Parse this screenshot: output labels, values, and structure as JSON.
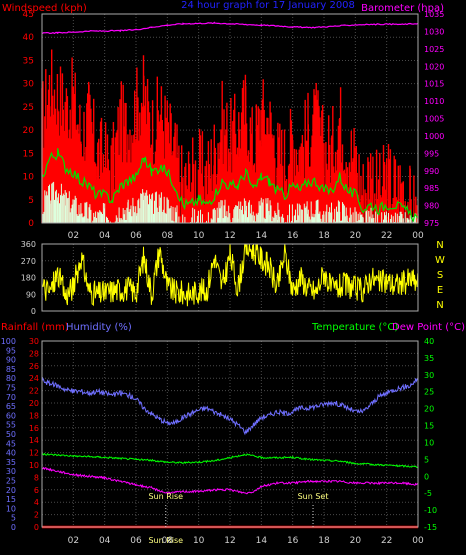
{
  "colors": {
    "background": "#000000",
    "grid": "#4a4a4a",
    "tick_text": "#cfcfcf",
    "wind_gust": "#ff0000",
    "wind_avg": "#00e000",
    "wind_min": "#ddffdd",
    "barometer": "#ff00ff",
    "wind_dir": "#ffff00",
    "rainfall": "#ff0000",
    "humidity": "#6f6fff",
    "temperature": "#00ff00",
    "dew_point": "#ff00ff",
    "frame": "#aaaaaa",
    "sun_text": "#ffff80",
    "title": "#2222ff"
  },
  "chart_data": [
    {
      "type": "line",
      "title": "24 hour graph for 17 January 2008",
      "ylabel": "Windspeed (kph)",
      "y2label": "Barometer (hpa)",
      "x_ticks": [
        "02",
        "04",
        "06",
        "08",
        "10",
        "12",
        "14",
        "16",
        "18",
        "20",
        "22",
        "00"
      ],
      "ylim": [
        0,
        45
      ],
      "yticks": [
        0,
        5,
        10,
        15,
        20,
        25,
        30,
        35,
        40,
        45
      ],
      "y2lim": [
        975,
        1035
      ],
      "y2ticks": [
        975,
        980,
        985,
        990,
        995,
        1000,
        1005,
        1010,
        1015,
        1020,
        1025,
        1030,
        1035
      ],
      "grid": true,
      "series": [
        {
          "role": "gust",
          "axis": "left",
          "x": [
            0,
            0.5,
            1,
            1.5,
            2,
            2.5,
            3,
            3.5,
            4,
            4.5,
            5,
            5.5,
            6,
            6.5,
            7,
            7.5,
            8,
            8.5,
            9,
            9.5,
            10,
            10.5,
            11,
            11.5,
            12,
            12.5,
            13,
            13.5,
            14,
            14.5,
            15,
            15.5,
            16,
            16.5,
            17,
            17.5,
            18,
            18.5,
            19,
            19.5,
            20,
            20.5,
            21,
            21.5,
            22,
            22.5,
            23,
            23.5,
            24
          ],
          "values": [
            22,
            30,
            28,
            25,
            27,
            19,
            23,
            15,
            14,
            12,
            22,
            20,
            25,
            28,
            20,
            24,
            20,
            15,
            8,
            10,
            12,
            10,
            15,
            22,
            18,
            20,
            25,
            16,
            24,
            22,
            15,
            14,
            18,
            16,
            20,
            22,
            16,
            16,
            23,
            16,
            14,
            7,
            12,
            6,
            10,
            8,
            8,
            4,
            2
          ]
        },
        {
          "role": "average",
          "axis": "left",
          "x": [
            0,
            0.5,
            1,
            1.5,
            2,
            2.5,
            3,
            3.5,
            4,
            4.5,
            5,
            5.5,
            6,
            6.5,
            7,
            7.5,
            8,
            8.5,
            9,
            9.5,
            10,
            10.5,
            11,
            11.5,
            12,
            12.5,
            13,
            13.5,
            14,
            14.5,
            15,
            15.5,
            16,
            16.5,
            17,
            17.5,
            18,
            18.5,
            19,
            19.5,
            20,
            20.5,
            21,
            21.5,
            22,
            22.5,
            23,
            23.5,
            24
          ],
          "values": [
            10,
            14,
            15,
            12,
            11,
            9,
            8,
            6,
            6,
            5,
            8,
            9,
            10,
            14,
            11,
            12,
            11,
            8,
            4,
            4,
            5,
            4,
            6,
            9,
            8,
            8,
            11,
            7,
            10,
            9,
            7,
            6,
            8,
            7,
            9,
            9,
            7,
            7,
            10,
            7,
            6,
            3,
            4,
            3,
            4,
            4,
            3,
            2,
            1
          ]
        },
        {
          "role": "minimum",
          "axis": "left",
          "x": [
            0,
            0.5,
            1,
            1.5,
            2,
            2.5,
            3,
            3.5,
            4,
            4.5,
            5,
            5.5,
            6,
            6.5,
            7,
            7.5,
            8,
            8.5,
            9,
            9.5,
            10,
            10.5,
            11,
            11.5,
            12,
            12.5,
            13,
            13.5,
            14,
            14.5,
            15,
            15.5,
            16,
            16.5,
            17,
            17.5,
            18,
            18.5,
            19,
            19.5,
            20,
            20.5,
            21,
            21.5,
            22,
            22.5,
            23,
            23.5,
            24
          ],
          "values": [
            4,
            6,
            7,
            5,
            4,
            3,
            2,
            1,
            2,
            1,
            3,
            3,
            4,
            6,
            4,
            5,
            4,
            2,
            0,
            1,
            1,
            0,
            2,
            3,
            2,
            3,
            4,
            2,
            3,
            3,
            2,
            1,
            2,
            2,
            3,
            3,
            2,
            2,
            3,
            2,
            1,
            0,
            1,
            0,
            0,
            0,
            0,
            0,
            0
          ]
        },
        {
          "role": "barometer",
          "axis": "right",
          "x": [
            0,
            1,
            2,
            3,
            4,
            5,
            6,
            7,
            8,
            9,
            10,
            11,
            12,
            13,
            14,
            15,
            16,
            17,
            18,
            19,
            20,
            21,
            22,
            23,
            24
          ],
          "values": [
            1029.5,
            1029.6,
            1029.8,
            1030.1,
            1030.1,
            1030.2,
            1030.5,
            1031.2,
            1031.8,
            1032.2,
            1032.3,
            1032.4,
            1032.2,
            1032.0,
            1031.8,
            1031.6,
            1031.3,
            1031.1,
            1031.3,
            1031.6,
            1031.9,
            1032.0,
            1032.1,
            1032.0,
            1032.3
          ]
        }
      ]
    },
    {
      "type": "line",
      "right_labels": [
        "N",
        "W",
        "S",
        "E",
        "N"
      ],
      "ylim": [
        0,
        360
      ],
      "yticks": [
        0,
        90,
        180,
        270,
        360
      ],
      "x_ticks": [
        "02",
        "04",
        "06",
        "08",
        "10",
        "12",
        "14",
        "16",
        "18",
        "20",
        "22",
        "00"
      ],
      "grid": true,
      "series": [
        {
          "role": "wind_direction",
          "x": [
            0,
            0.5,
            1,
            1.5,
            2,
            2.5,
            3,
            3.5,
            4,
            4.5,
            5,
            5.5,
            6,
            6.5,
            7,
            7.5,
            8,
            8.5,
            9,
            9.5,
            10,
            10.5,
            11,
            11.5,
            12,
            12.5,
            13,
            13.5,
            14,
            14.5,
            15,
            15.5,
            16,
            16.5,
            17,
            17.5,
            18,
            18.5,
            19,
            19.5,
            20,
            20.5,
            21,
            21.5,
            22,
            22.5,
            23,
            23.5,
            24
          ],
          "values": [
            130,
            100,
            200,
            80,
            130,
            290,
            110,
            90,
            95,
            110,
            115,
            120,
            100,
            290,
            90,
            330,
            130,
            100,
            95,
            90,
            110,
            105,
            290,
            130,
            300,
            120,
            340,
            330,
            280,
            240,
            120,
            310,
            110,
            180,
            120,
            100,
            210,
            110,
            130,
            140,
            120,
            110,
            180,
            150,
            160,
            140,
            150,
            170,
            150
          ]
        }
      ]
    },
    {
      "type": "line",
      "left_labels": [
        "Rainfall (mm)",
        "Humidity (%)"
      ],
      "right_labels": [
        "Temperature (°C)",
        "Dew Point (°C)"
      ],
      "x_ticks": [
        "02",
        "04",
        "06",
        "08",
        "10",
        "12",
        "14",
        "16",
        "18",
        "20",
        "22",
        "00"
      ],
      "rain_axis": {
        "ylim": [
          0,
          30
        ],
        "yticks": [
          0,
          2,
          4,
          6,
          8,
          10,
          12,
          14,
          16,
          18,
          20,
          22,
          24,
          26,
          28,
          30
        ]
      },
      "humidity_axis": {
        "ylim": [
          0,
          100
        ],
        "yticks": [
          0,
          5,
          10,
          15,
          20,
          25,
          30,
          35,
          40,
          45,
          50,
          55,
          60,
          65,
          70,
          75,
          80,
          85,
          90,
          95,
          100
        ]
      },
      "temp_axis": {
        "ylim": [
          -15,
          40
        ],
        "yticks": [
          -15,
          -10,
          -5,
          0,
          5,
          10,
          15,
          20,
          25,
          30,
          35,
          40
        ]
      },
      "grid": true,
      "annotations": [
        {
          "text": "Sun Rise",
          "x": 7.9
        },
        {
          "text": "Sun Set",
          "x": 17.3
        },
        {
          "text": "Sun Rise",
          "x": 7.9,
          "bottom": true
        }
      ],
      "series": [
        {
          "role": "humidity",
          "axis": "humidity",
          "x": [
            0,
            0.5,
            1,
            1.5,
            2,
            2.5,
            3,
            3.5,
            4,
            4.5,
            5,
            5.5,
            6,
            6.5,
            7,
            7.5,
            8,
            8.5,
            9,
            9.5,
            10,
            10.5,
            11,
            11.5,
            12,
            12.5,
            13,
            13.5,
            14,
            14.5,
            15,
            15.5,
            16,
            16.5,
            17,
            17.5,
            18,
            18.5,
            19,
            19.5,
            20,
            20.5,
            21,
            21.5,
            22,
            22.5,
            23,
            23.5,
            24
          ],
          "values": [
            79,
            77,
            76,
            74,
            73,
            73,
            72,
            73,
            72,
            71,
            72,
            71,
            69,
            64,
            61,
            58,
            56,
            56,
            59,
            61,
            63,
            64,
            62,
            60,
            58,
            55,
            51,
            55,
            59,
            60,
            62,
            61,
            62,
            64,
            64,
            65,
            66,
            67,
            66,
            64,
            62,
            62,
            66,
            70,
            72,
            74,
            75,
            76,
            80
          ]
        },
        {
          "role": "temperature",
          "axis": "temp",
          "x": [
            0,
            1,
            2,
            3,
            4,
            5,
            6,
            7,
            8,
            9,
            10,
            11,
            12,
            12.5,
            13,
            13.5,
            14,
            15,
            16,
            17,
            18,
            19,
            20,
            21,
            22,
            23,
            24
          ],
          "values": [
            6.5,
            6.3,
            6.0,
            5.8,
            5.6,
            5.3,
            5.0,
            4.7,
            4.2,
            4.0,
            4.2,
            4.6,
            5.5,
            6.0,
            6.5,
            6.0,
            5.5,
            5.5,
            5.6,
            5.0,
            4.7,
            4.5,
            3.8,
            3.5,
            3.3,
            3.0,
            2.8
          ]
        },
        {
          "role": "dew_point",
          "axis": "temp",
          "x": [
            0,
            1,
            2,
            3,
            4,
            5,
            6,
            7,
            8,
            9,
            10,
            11,
            12,
            12.5,
            13,
            13.5,
            14,
            15,
            16,
            17,
            18,
            19,
            20,
            21,
            22,
            23,
            24
          ],
          "values": [
            2.5,
            1.5,
            0.5,
            0.0,
            -0.5,
            -1.5,
            -2.5,
            -3.5,
            -5.0,
            -4.5,
            -4.5,
            -4.0,
            -4.0,
            -4.5,
            -5.0,
            -4.5,
            -3.0,
            -2.0,
            -2.0,
            -1.5,
            -1.5,
            -1.5,
            -2.0,
            -2.0,
            -2.0,
            -2.0,
            -2.5
          ]
        },
        {
          "role": "rainfall",
          "axis": "rain",
          "x": [
            0,
            24
          ],
          "values": [
            0,
            0
          ]
        }
      ]
    }
  ]
}
